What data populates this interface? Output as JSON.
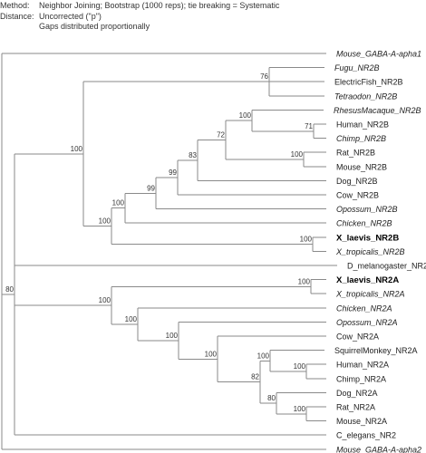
{
  "header": {
    "method_label": "Method:",
    "method_value": "Neighbor Joining; Bootstrap (1000 reps); tie breaking = Systematic",
    "distance_label": "Distance:",
    "distance_value": "Uncorrected (\"p\")",
    "gaps_value": "Gaps distributed proportionally"
  },
  "tree": {
    "leaves": [
      {
        "id": "mouse_gaba1",
        "label": "Mouse_GABA-A-apha1",
        "style": "italic"
      },
      {
        "id": "fugu",
        "label": "Fugu_NR2B",
        "style": "italic"
      },
      {
        "id": "efish",
        "label": "ElectricFish_NR2B",
        "style": "normal"
      },
      {
        "id": "tetra",
        "label": "Tetraodon_NR2B",
        "style": "italic"
      },
      {
        "id": "rhesus",
        "label": "RhesusMacaque_NR2B",
        "style": "italic"
      },
      {
        "id": "human2b",
        "label": "Human_NR2B",
        "style": "normal"
      },
      {
        "id": "chimp2b",
        "label": "Chimp_NR2B",
        "style": "italic"
      },
      {
        "id": "rat2b",
        "label": "Rat_NR2B",
        "style": "normal"
      },
      {
        "id": "mouse2b",
        "label": "Mouse_NR2B",
        "style": "normal"
      },
      {
        "id": "dog2b",
        "label": "Dog_NR2B",
        "style": "normal"
      },
      {
        "id": "cow2b",
        "label": "Cow_NR2B",
        "style": "normal"
      },
      {
        "id": "opos2b",
        "label": "Opossum_NR2B",
        "style": "italic"
      },
      {
        "id": "chick2b",
        "label": "Chicken_NR2B",
        "style": "italic"
      },
      {
        "id": "xl2b",
        "label": "X_laevis_NR2B",
        "style": "bold"
      },
      {
        "id": "xt2b",
        "label": "X_tropicalis_NR2B",
        "style": "italic"
      },
      {
        "id": "dmel",
        "label": "D_melanogaster_NR2",
        "style": "normal"
      },
      {
        "id": "xl2a",
        "label": "X_laevis_NR2A",
        "style": "bold"
      },
      {
        "id": "xt2a",
        "label": "X_tropicalis_NR2A",
        "style": "italic"
      },
      {
        "id": "chick2a",
        "label": "Chicken_NR2A",
        "style": "italic"
      },
      {
        "id": "opos2a",
        "label": "Opossum_NR2A",
        "style": "italic"
      },
      {
        "id": "cow2a",
        "label": "Cow_NR2A",
        "style": "normal"
      },
      {
        "id": "squirrel",
        "label": "SquirrelMonkey_NR2A",
        "style": "normal"
      },
      {
        "id": "human2a",
        "label": "Human_NR2A",
        "style": "normal"
      },
      {
        "id": "chimp2a",
        "label": "Chimp_NR2A",
        "style": "normal"
      },
      {
        "id": "dog2a",
        "label": "Dog_NR2A",
        "style": "normal"
      },
      {
        "id": "rat2a",
        "label": "Rat_NR2A",
        "style": "normal"
      },
      {
        "id": "mouse2a",
        "label": "Mouse_NR2A",
        "style": "normal"
      },
      {
        "id": "celeg",
        "label": "C_elegans_NR2",
        "style": "normal"
      },
      {
        "id": "mouse_gaba2",
        "label": "Mouse_GABA-A-apha2",
        "style": "italic"
      }
    ],
    "bootstrap": [
      {
        "node": "fish",
        "value": "76"
      },
      {
        "node": "ratmouse2b",
        "value": "100"
      },
      {
        "node": "humanchimp2b",
        "value": "71"
      },
      {
        "node": "primates2b",
        "value": "100"
      },
      {
        "node": "primrod2b",
        "value": "72"
      },
      {
        "node": "withdog2b",
        "value": "83"
      },
      {
        "node": "withcow2b",
        "value": "99"
      },
      {
        "node": "withopos2b",
        "value": "99"
      },
      {
        "node": "withchick2b",
        "value": "100"
      },
      {
        "node": "xen2b",
        "value": "100"
      },
      {
        "node": "tetra2b",
        "value": "100"
      },
      {
        "node": "vert2b",
        "value": "100"
      },
      {
        "node": "xen2a",
        "value": "100"
      },
      {
        "node": "humanchimp2a",
        "value": "100"
      },
      {
        "node": "primates2a",
        "value": "100"
      },
      {
        "node": "ratmouse2a",
        "value": "100"
      },
      {
        "node": "dogrod2a",
        "value": "80"
      },
      {
        "node": "eutherian2a",
        "value": "82"
      },
      {
        "node": "withcow2a",
        "value": "100"
      },
      {
        "node": "withopos2a",
        "value": "100"
      },
      {
        "node": "withchick2a",
        "value": "100"
      },
      {
        "node": "tetra2a",
        "value": "100"
      },
      {
        "node": "ingroup",
        "value": "80"
      }
    ]
  }
}
